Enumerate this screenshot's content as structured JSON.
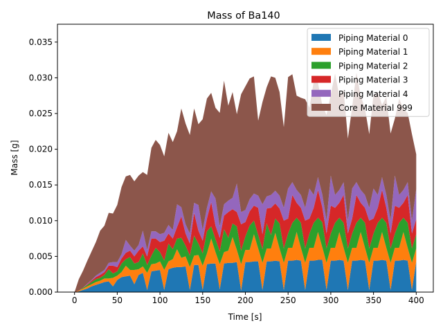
{
  "chart_data": {
    "type": "area",
    "title": "Mass of Ba140",
    "xlabel": "Time [s]",
    "ylabel": "Mass [g]",
    "xlim": [
      -20,
      420
    ],
    "ylim": [
      0,
      0.0375
    ],
    "xticks": [
      0,
      50,
      100,
      150,
      200,
      250,
      300,
      350,
      400
    ],
    "xtick_labels": [
      "0",
      "50",
      "100",
      "150",
      "200",
      "250",
      "300",
      "350",
      "400"
    ],
    "yticks": [
      0.0,
      0.005,
      0.01,
      0.015,
      0.02,
      0.025,
      0.03,
      0.035
    ],
    "ytick_labels": [
      "0.000",
      "0.005",
      "0.010",
      "0.015",
      "0.020",
      "0.025",
      "0.030",
      "0.035"
    ],
    "grid": false,
    "legend_position": "top-right",
    "stacked": true,
    "x": [
      0,
      5,
      10,
      15,
      20,
      25,
      30,
      35,
      40,
      45,
      50,
      55,
      60,
      65,
      70,
      75,
      80,
      85,
      90,
      95,
      100,
      105,
      110,
      115,
      120,
      125,
      130,
      135,
      140,
      145,
      150,
      155,
      160,
      165,
      170,
      175,
      180,
      185,
      190,
      195,
      200,
      205,
      210,
      215,
      220,
      225,
      230,
      235,
      240,
      245,
      250,
      255,
      260,
      265,
      270,
      275,
      280,
      285,
      290,
      295,
      300,
      305,
      310,
      315,
      320,
      325,
      330,
      335,
      340,
      345,
      350,
      355,
      360,
      365,
      370,
      375,
      380,
      385,
      390,
      395,
      400
    ],
    "series": [
      {
        "name": "Piping Material 0",
        "color": "#1f77b4",
        "values": [
          0,
          0.0001,
          0.0003,
          0.0005,
          0.0008,
          0.001,
          0.0012,
          0.0014,
          0.0015,
          0.0008,
          0.0017,
          0.0021,
          0.0022,
          0.0023,
          0.0011,
          0.0024,
          0.0027,
          0.0003,
          0.0029,
          0.003,
          0.0031,
          0.0003,
          0.0032,
          0.0034,
          0.0035,
          0.0035,
          0.0036,
          0.0003,
          0.0038,
          0.0038,
          0.0003,
          0.0039,
          0.004,
          0.004,
          0.0004,
          0.004,
          0.0041,
          0.0041,
          0.0042,
          0.0002,
          0.0042,
          0.0042,
          0.0043,
          0.0043,
          0.0003,
          0.0043,
          0.0043,
          0.0044,
          0.0043,
          0.0003,
          0.0044,
          0.0044,
          0.0045,
          0.0044,
          0.0003,
          0.0044,
          0.0044,
          0.0045,
          0.0045,
          0.0003,
          0.0044,
          0.0044,
          0.0045,
          0.0044,
          0.0003,
          0.0044,
          0.0044,
          0.0045,
          0.0044,
          0.0003,
          0.0044,
          0.0044,
          0.0045,
          0.0044,
          0.0003,
          0.0044,
          0.0044,
          0.0045,
          0.0044,
          0.0003,
          0.0043
        ]
      },
      {
        "name": "Piping Material 1",
        "color": "#ff7f0e",
        "values": [
          0,
          0.0001,
          0.0002,
          0.0003,
          0.0003,
          0.0004,
          0.0004,
          0.0005,
          0.0004,
          0.0012,
          0.0006,
          0.0007,
          0.0015,
          0.0008,
          0.002,
          0.0008,
          0.0009,
          0.0024,
          0.001,
          0.001,
          0.0012,
          0.0028,
          0.0011,
          0.0012,
          0.0025,
          0.0013,
          0.0014,
          0.0032,
          0.0013,
          0.0014,
          0.0034,
          0.0015,
          0.0035,
          0.0016,
          0.0035,
          0.0016,
          0.0017,
          0.0036,
          0.0017,
          0.0037,
          0.0017,
          0.0017,
          0.0038,
          0.0018,
          0.0038,
          0.0018,
          0.0018,
          0.0039,
          0.0018,
          0.0038,
          0.0018,
          0.0018,
          0.0039,
          0.0018,
          0.0038,
          0.0018,
          0.0018,
          0.0039,
          0.0018,
          0.0038,
          0.0018,
          0.0018,
          0.0039,
          0.0018,
          0.0038,
          0.0018,
          0.0018,
          0.0039,
          0.0018,
          0.0038,
          0.0018,
          0.0018,
          0.0039,
          0.0018,
          0.0038,
          0.0018,
          0.0018,
          0.0039,
          0.0018,
          0.0038,
          0.0018
        ]
      },
      {
        "name": "Piping Material 2",
        "color": "#2ca02c",
        "values": [
          0,
          0,
          0.0001,
          0.0002,
          0.0003,
          0.0004,
          0.0004,
          0.0005,
          0.0013,
          0.0006,
          0.0006,
          0.0012,
          0.0009,
          0.0018,
          0.0009,
          0.001,
          0.0018,
          0.0011,
          0.0012,
          0.0022,
          0.0013,
          0.0013,
          0.0025,
          0.0014,
          0.0015,
          0.0028,
          0.0015,
          0.0016,
          0.0028,
          0.0016,
          0.0017,
          0.0031,
          0.0017,
          0.0018,
          0.0018,
          0.0032,
          0.0018,
          0.0019,
          0.0033,
          0.0019,
          0.0019,
          0.0034,
          0.0019,
          0.0019,
          0.0019,
          0.0035,
          0.0019,
          0.002,
          0.0035,
          0.002,
          0.002,
          0.0035,
          0.002,
          0.0035,
          0.002,
          0.002,
          0.0035,
          0.002,
          0.0035,
          0.002,
          0.002,
          0.0035,
          0.002,
          0.0035,
          0.002,
          0.002,
          0.0035,
          0.002,
          0.0035,
          0.002,
          0.002,
          0.0035,
          0.002,
          0.0035,
          0.002,
          0.002,
          0.0035,
          0.002,
          0.0035,
          0.002,
          0.002
        ]
      },
      {
        "name": "Piping Material 3",
        "color": "#d62728",
        "values": [
          0,
          0,
          0,
          0.0001,
          0.0002,
          0.0003,
          0.0004,
          0.0004,
          0.0005,
          0.0011,
          0.0006,
          0.0007,
          0.0009,
          0.0009,
          0.001,
          0.0016,
          0.001,
          0.0012,
          0.0024,
          0.0013,
          0.0014,
          0.0028,
          0.0014,
          0.0015,
          0.0016,
          0.003,
          0.0017,
          0.0017,
          0.0032,
          0.0018,
          0.0018,
          0.0018,
          0.0034,
          0.0019,
          0.0019,
          0.0019,
          0.0036,
          0.002,
          0.002,
          0.0037,
          0.002,
          0.002,
          0.0021,
          0.0038,
          0.0021,
          0.0021,
          0.0038,
          0.0021,
          0.0021,
          0.0039,
          0.0021,
          0.0039,
          0.0021,
          0.0021,
          0.0039,
          0.0021,
          0.0021,
          0.0039,
          0.0021,
          0.0021,
          0.0039,
          0.0021,
          0.0021,
          0.0039,
          0.0021,
          0.0021,
          0.0039,
          0.0021,
          0.0021,
          0.0039,
          0.0021,
          0.0021,
          0.0039,
          0.0021,
          0.0021,
          0.0039,
          0.0021,
          0.0021,
          0.0039,
          0.0021,
          0.0021
        ]
      },
      {
        "name": "Piping Material 4",
        "color": "#9467bd",
        "values": [
          0,
          0,
          0,
          0.0001,
          0.0001,
          0.0002,
          0.0003,
          0.0003,
          0.0004,
          0.0005,
          0.0007,
          0.0006,
          0.0018,
          0.0007,
          0.0008,
          0.0008,
          0.0022,
          0.0009,
          0.001,
          0.001,
          0.0011,
          0.0011,
          0.0012,
          0.0012,
          0.0032,
          0.0013,
          0.0013,
          0.0014,
          0.0014,
          0.0036,
          0.0015,
          0.0015,
          0.0015,
          0.0038,
          0.0016,
          0.0016,
          0.0016,
          0.0016,
          0.004,
          0.0017,
          0.0017,
          0.0017,
          0.0017,
          0.0017,
          0.0042,
          0.0017,
          0.0018,
          0.0018,
          0.0018,
          0.0018,
          0.0042,
          0.0018,
          0.0018,
          0.0018,
          0.0018,
          0.0042,
          0.0018,
          0.0018,
          0.0018,
          0.0018,
          0.0042,
          0.0018,
          0.0018,
          0.0018,
          0.0018,
          0.0042,
          0.0018,
          0.0018,
          0.0018,
          0.0018,
          0.0042,
          0.0018,
          0.0018,
          0.0018,
          0.0018,
          0.0042,
          0.0018,
          0.0018,
          0.0018,
          0.0018,
          0.0042
        ]
      },
      {
        "name": "Core Material 999",
        "color": "#8c564b",
        "values": [
          0,
          0.0016,
          0.0024,
          0.0032,
          0.004,
          0.0047,
          0.0059,
          0.0062,
          0.007,
          0.0068,
          0.008,
          0.0094,
          0.0089,
          0.0099,
          0.0097,
          0.0097,
          0.0082,
          0.0105,
          0.0117,
          0.0128,
          0.0125,
          0.0107,
          0.0129,
          0.0123,
          0.0102,
          0.0138,
          0.0141,
          0.0138,
          0.0132,
          0.0113,
          0.0155,
          0.0153,
          0.0138,
          0.0127,
          0.0159,
          0.0173,
          0.0133,
          0.0148,
          0.0097,
          0.0165,
          0.0173,
          0.0169,
          0.0164,
          0.0105,
          0.0143,
          0.0153,
          0.0166,
          0.0158,
          0.0145,
          0.0113,
          0.0156,
          0.0151,
          0.0132,
          0.0136,
          0.0152,
          0.0113,
          0.0159,
          0.0132,
          0.0125,
          0.0148,
          0.0114,
          0.017,
          0.0131,
          0.0129,
          0.0115,
          0.0114,
          0.0153,
          0.0132,
          0.0121,
          0.0103,
          0.0131,
          0.0144,
          0.0101,
          0.0137,
          0.0122,
          0.008,
          0.0135,
          0.0113,
          0.0097,
          0.0121,
          0.0049
        ]
      }
    ]
  }
}
